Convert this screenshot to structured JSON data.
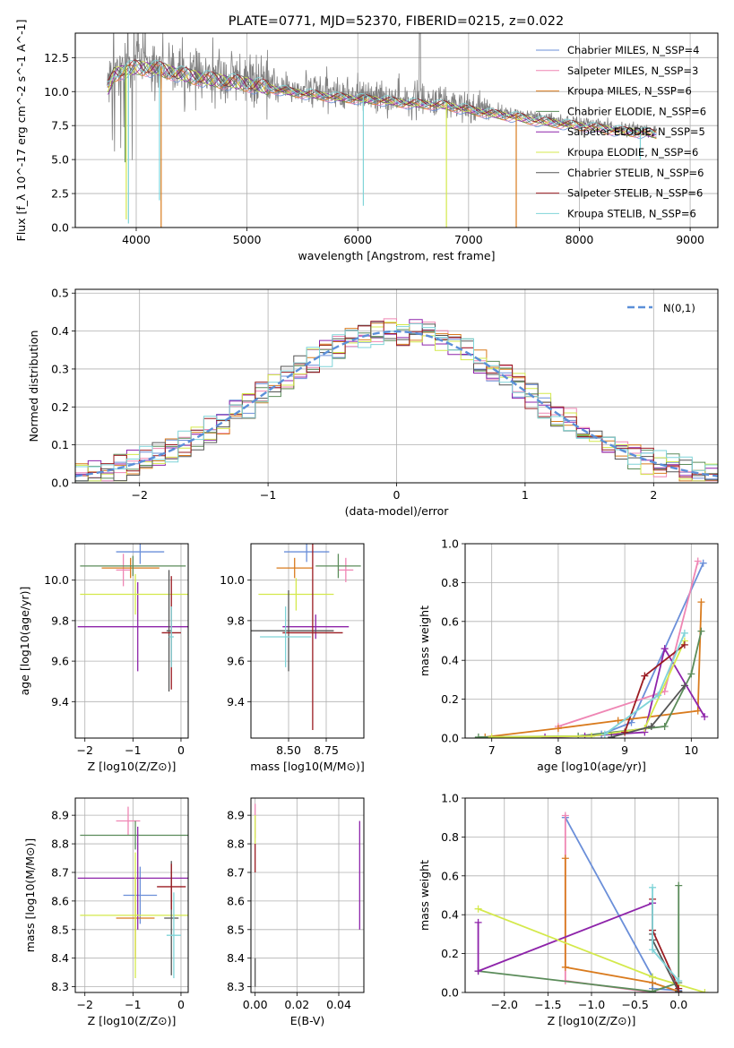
{
  "colors": {
    "series": [
      "#6b8fd9",
      "#ef86b4",
      "#d97b1e",
      "#5b8c5a",
      "#8e24aa",
      "#d4e94c",
      "#555555",
      "#9b1c22",
      "#7fd4d8"
    ],
    "normal_curve": "#5b8fd8",
    "grid": "#b0b0b0",
    "spectrum_data": "#808080"
  },
  "series_names": [
    "Chabrier MILES, N_SSP=4",
    "Salpeter MILES, N_SSP=3",
    "Kroupa MILES, N_SSP=6",
    "Chabrier ELODIE, N_SSP=6",
    "Salpeter ELODIE, N_SSP=5",
    "Kroupa ELODIE, N_SSP=6",
    "Chabrier STELIB, N_SSP=6",
    "Salpeter STELIB, N_SSP=6",
    "Kroupa STELIB, N_SSP=6"
  ],
  "chart_data": [
    {
      "id": "spectrum",
      "type": "line",
      "title": "PLATE=0771, MJD=52370, FIBERID=0215, z=0.022",
      "xlabel": "wavelength [Angstrom, rest frame]",
      "ylabel": "Flux [f_λ 10^-17 erg cm^-2 s^-1 A^-1]",
      "xlim": [
        3450,
        9250
      ],
      "ylim": [
        0,
        14.3
      ],
      "xticks": [
        4000,
        5000,
        6000,
        7000,
        8000,
        9000
      ],
      "yticks": [
        0.0,
        2.5,
        5.0,
        7.5,
        10.0,
        12.5
      ],
      "legend_position": "upper right",
      "continuum_x": [
        3750,
        3800,
        3900,
        4000,
        4200,
        4400,
        4600,
        4800,
        5000,
        5200,
        5400,
        5600,
        5800,
        6000,
        6200,
        6400,
        6600,
        6800,
        7000,
        7200,
        7400,
        7600,
        7800,
        8000,
        8200,
        8400,
        8600,
        8700
      ],
      "continuum_y": [
        10.5,
        11.5,
        11.8,
        12.0,
        11.9,
        11.5,
        11.2,
        11.0,
        10.8,
        10.5,
        10.2,
        10.0,
        9.8,
        9.7,
        9.6,
        9.4,
        9.3,
        9.2,
        8.9,
        8.6,
        8.4,
        8.1,
        7.9,
        7.7,
        7.5,
        7.3,
        7.2,
        7.1
      ],
      "model_drops": [
        {
          "series": 3,
          "x": 3900,
          "y": 4.8
        },
        {
          "series": 5,
          "x": 3910,
          "y": 0.6
        },
        {
          "series": 8,
          "x": 3930,
          "y": 0.3
        },
        {
          "series": 8,
          "x": 4210,
          "y": 2.0
        },
        {
          "series": 2,
          "x": 4225,
          "y": 0.0
        },
        {
          "series": 8,
          "x": 6050,
          "y": 1.6
        },
        {
          "series": 5,
          "x": 6800,
          "y": 0.0
        },
        {
          "series": 2,
          "x": 7430,
          "y": 0.0
        },
        {
          "series": 8,
          "x": 8550,
          "y": 5.0
        }
      ]
    },
    {
      "id": "residuals",
      "type": "histogram",
      "xlabel": "(data-model)/error",
      "ylabel": "Normed distribution",
      "xlim": [
        -2.5,
        2.5
      ],
      "ylim": [
        0,
        0.51
      ],
      "xticks": [
        -2,
        -1,
        0,
        1,
        2
      ],
      "yticks": [
        0.0,
        0.1,
        0.2,
        0.3,
        0.4,
        0.5
      ],
      "curve_label": "N(0,1)",
      "legend_position": "upper right",
      "bin_width": 0.1
    },
    {
      "id": "age_vs_Z",
      "type": "errorbar",
      "xlabel": "Z [log10(Z/Z⊙)]",
      "ylabel": "age [log10(age/yr)]",
      "xlim": [
        -2.2,
        0.15
      ],
      "ylim": [
        9.22,
        10.18
      ],
      "xticks": [
        -2,
        -1,
        0
      ],
      "yticks": [
        9.4,
        9.6,
        9.8,
        10.0
      ],
      "points": [
        {
          "s": 0,
          "x": -0.85,
          "y": 10.14,
          "xerr": 0.5,
          "yerr": 0.06
        },
        {
          "s": 1,
          "x": -1.2,
          "y": 10.05,
          "xerr": 0.15,
          "yerr": 0.08
        },
        {
          "s": 2,
          "x": -1.05,
          "y": 10.06,
          "xerr": 0.6,
          "yerr": 0.05
        },
        {
          "s": 3,
          "x": -1.0,
          "y": 10.07,
          "xerr": 1.1,
          "yerr": 0.05
        },
        {
          "s": 4,
          "x": -0.9,
          "y": 9.77,
          "xerr": 1.25,
          "yerr": 0.22
        },
        {
          "s": 5,
          "x": -0.95,
          "y": 9.93,
          "xerr": 1.15,
          "yerr": 0.1
        },
        {
          "s": 6,
          "x": -0.25,
          "y": 9.75,
          "xerr": 0.05,
          "yerr": 0.3
        },
        {
          "s": 7,
          "x": -0.2,
          "y": 9.74,
          "xerr": 0.2,
          "yerr": 0.28
        },
        {
          "s": 8,
          "x": -0.2,
          "y": 9.72,
          "xerr": 0.05,
          "yerr": 0.15
        }
      ]
    },
    {
      "id": "age_vs_mass",
      "type": "errorbar",
      "xlabel": "mass [log10(M/M⊙)]",
      "ylabel": "",
      "xlim": [
        8.25,
        9.0
      ],
      "ylim": [
        9.22,
        10.18
      ],
      "xticks": [
        8.5,
        8.75
      ],
      "xtick_labels": [
        "8.50",
        "8.75"
      ],
      "yticks": [
        9.4,
        9.6,
        9.8,
        10.0
      ],
      "points": [
        {
          "s": 0,
          "x": 8.62,
          "y": 10.14,
          "xerr": 0.15,
          "yerr": 0.05
        },
        {
          "s": 1,
          "x": 8.88,
          "y": 10.05,
          "xerr": 0.05,
          "yerr": 0.06
        },
        {
          "s": 2,
          "x": 8.54,
          "y": 10.06,
          "xerr": 0.12,
          "yerr": 0.05
        },
        {
          "s": 3,
          "x": 8.83,
          "y": 10.07,
          "xerr": 0.15,
          "yerr": 0.06
        },
        {
          "s": 4,
          "x": 8.68,
          "y": 9.77,
          "xerr": 0.22,
          "yerr": 0.06
        },
        {
          "s": 5,
          "x": 8.55,
          "y": 9.93,
          "xerr": 0.25,
          "yerr": 0.08
        },
        {
          "s": 6,
          "x": 8.5,
          "y": 9.75,
          "xerr": 0.3,
          "yerr": 0.2
        },
        {
          "s": 7,
          "x": 8.66,
          "y": 9.74,
          "xerr": 0.2,
          "yerr": 0.48
        },
        {
          "s": 8,
          "x": 8.48,
          "y": 9.72,
          "xerr": 0.17,
          "yerr": 0.15
        }
      ]
    },
    {
      "id": "weight_vs_age",
      "type": "line",
      "xlabel": "age [log10(age/yr)]",
      "ylabel": "mass weight",
      "xlim": [
        6.6,
        10.4
      ],
      "ylim": [
        0,
        1.0
      ],
      "xticks": [
        7,
        8,
        9,
        10
      ],
      "yticks": [
        0.0,
        0.2,
        0.4,
        0.6,
        0.8,
        1.0
      ],
      "series": [
        {
          "s": 0,
          "x": [
            8.65,
            9.1,
            10.18
          ],
          "y": [
            0.02,
            0.08,
            0.9
          ]
        },
        {
          "s": 1,
          "x": [
            8.0,
            9.6,
            10.1
          ],
          "y": [
            0.06,
            0.24,
            0.91
          ]
        },
        {
          "s": 2,
          "x": [
            6.9,
            8.0,
            8.9,
            10.1,
            10.15
          ],
          "y": [
            0.005,
            0.05,
            0.09,
            0.14,
            0.7
          ]
        },
        {
          "s": 3,
          "x": [
            6.8,
            8.3,
            9.6,
            10.0,
            10.15
          ],
          "y": [
            0.005,
            0.01,
            0.06,
            0.33,
            0.55
          ]
        },
        {
          "s": 4,
          "x": [
            7.8,
            8.4,
            9.3,
            9.6,
            10.2
          ],
          "y": [
            0.005,
            0.01,
            0.03,
            0.46,
            0.11
          ]
        },
        {
          "s": 5,
          "x": [
            7.0,
            8.5,
            9.3,
            9.9
          ],
          "y": [
            0.005,
            0.01,
            0.05,
            0.5
          ]
        },
        {
          "s": 6,
          "x": [
            8.8,
            9.4,
            9.9
          ],
          "y": [
            0.005,
            0.06,
            0.27
          ]
        },
        {
          "s": 7,
          "x": [
            9.0,
            9.3,
            9.9
          ],
          "y": [
            0.03,
            0.32,
            0.48
          ]
        },
        {
          "s": 8,
          "x": [
            8.7,
            9.5,
            9.9
          ],
          "y": [
            0.02,
            0.22,
            0.54
          ]
        }
      ]
    },
    {
      "id": "mass_vs_Z",
      "type": "errorbar",
      "xlabel": "Z [log10(Z/Z⊙)]",
      "ylabel": "mass [log10(M/M⊙)]",
      "xlim": [
        -2.2,
        0.15
      ],
      "ylim": [
        8.28,
        8.96
      ],
      "xticks": [
        -2,
        -1,
        0
      ],
      "yticks": [
        8.3,
        8.4,
        8.5,
        8.6,
        8.7,
        8.8,
        8.9
      ],
      "points": [
        {
          "s": 0,
          "x": -0.85,
          "y": 8.62,
          "xerr": 0.35,
          "yerr": 0.1
        },
        {
          "s": 1,
          "x": -1.1,
          "y": 8.88,
          "xerr": 0.25,
          "yerr": 0.05
        },
        {
          "s": 2,
          "x": -0.95,
          "y": 8.54,
          "xerr": 0.4,
          "yerr": 0.14
        },
        {
          "s": 3,
          "x": -0.95,
          "y": 8.83,
          "xerr": 1.15,
          "yerr": 0.05
        },
        {
          "s": 4,
          "x": -0.9,
          "y": 8.68,
          "xerr": 1.25,
          "yerr": 0.18
        },
        {
          "s": 5,
          "x": -0.95,
          "y": 8.55,
          "xerr": 1.15,
          "yerr": 0.22
        },
        {
          "s": 6,
          "x": -0.2,
          "y": 8.54,
          "xerr": 0.15,
          "yerr": 0.2
        },
        {
          "s": 7,
          "x": -0.2,
          "y": 8.65,
          "xerr": 0.3,
          "yerr": 0.08
        },
        {
          "s": 8,
          "x": -0.15,
          "y": 8.48,
          "xerr": 0.15,
          "yerr": 0.15
        }
      ]
    },
    {
      "id": "mass_vs_ebv",
      "type": "errorbar",
      "xlabel": "E(B-V)",
      "ylabel": "",
      "xlim": [
        -0.002,
        0.052
      ],
      "ylim": [
        8.28,
        8.96
      ],
      "xticks": [
        0.0,
        0.02,
        0.04
      ],
      "xtick_labels": [
        "0.00",
        "0.02",
        "0.04"
      ],
      "yticks": [
        8.3,
        8.4,
        8.5,
        8.6,
        8.7,
        8.8,
        8.9
      ],
      "points": [
        {
          "s": 1,
          "x": 0.0,
          "y": 8.88,
          "xerr": 0.0,
          "yerr": 0.06
        },
        {
          "s": 5,
          "x": 0.0,
          "y": 8.85,
          "xerr": 0.0,
          "yerr": 0.05
        },
        {
          "s": 7,
          "x": 0.0,
          "y": 8.75,
          "xerr": 0.0,
          "yerr": 0.05
        },
        {
          "s": 6,
          "x": 0.0,
          "y": 8.35,
          "xerr": 0.0,
          "yerr": 0.05
        },
        {
          "s": 4,
          "x": 0.05,
          "y": 8.69,
          "xerr": 0.0,
          "yerr": 0.19
        }
      ]
    },
    {
      "id": "weight_vs_Z",
      "type": "line",
      "xlabel": "Z [log10(Z/Z⊙)]",
      "ylabel": "mass weight",
      "xlim": [
        -2.45,
        0.45
      ],
      "ylim": [
        0,
        1.0
      ],
      "xticks": [
        -2.0,
        -1.5,
        -1.0,
        -0.5,
        0.0
      ],
      "xtick_labels": [
        "−2.0",
        "−1.5",
        "−1.0",
        "−0.5",
        "0.0"
      ],
      "yticks": [
        0.0,
        0.2,
        0.4,
        0.6,
        0.8,
        1.0
      ],
      "series": [
        {
          "s": 0,
          "x": [
            -1.3,
            -0.3,
            -0.3,
            0.0
          ],
          "y": [
            0.9,
            0.08,
            0.02,
            0.01
          ]
        },
        {
          "s": 1,
          "x": [
            -1.3,
            -1.3,
            -0.3,
            0.0
          ],
          "y": [
            0.91,
            0.06,
            0.0,
            0.0
          ]
        },
        {
          "s": 2,
          "x": [
            -1.3,
            -1.3,
            -0.3,
            0.0
          ],
          "y": [
            0.69,
            0.13,
            0.05,
            0.005
          ]
        },
        {
          "s": 3,
          "x": [
            -2.3,
            -0.3,
            0.0,
            0.0
          ],
          "y": [
            0.11,
            0.005,
            0.05,
            0.55
          ]
        },
        {
          "s": 4,
          "x": [
            -2.3,
            -2.3,
            -0.3
          ],
          "y": [
            0.36,
            0.11,
            0.46
          ]
        },
        {
          "s": 5,
          "x": [
            -2.3,
            -0.3,
            0.3
          ],
          "y": [
            0.43,
            0.08,
            0.0
          ]
        },
        {
          "s": 6,
          "x": [
            -0.3,
            -0.3,
            0.0
          ],
          "y": [
            0.3,
            0.27,
            0.005
          ]
        },
        {
          "s": 7,
          "x": [
            -0.3,
            -0.3,
            0.0
          ],
          "y": [
            0.48,
            0.32,
            0.02
          ]
        },
        {
          "s": 8,
          "x": [
            -0.3,
            -0.3,
            0.0
          ],
          "y": [
            0.54,
            0.22,
            0.06
          ]
        }
      ]
    }
  ]
}
